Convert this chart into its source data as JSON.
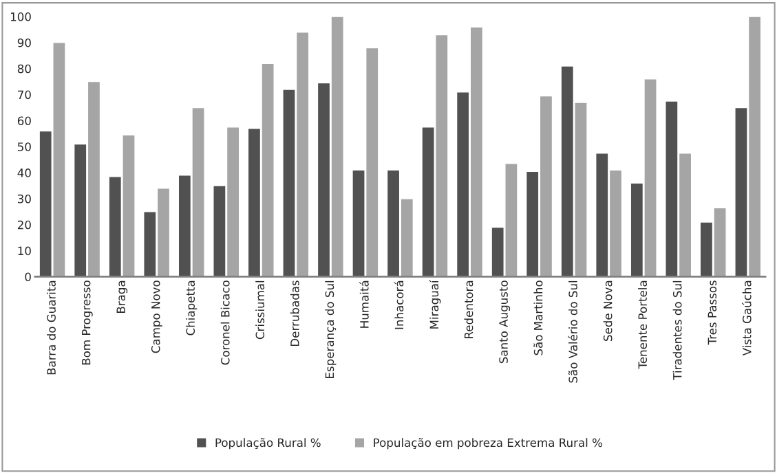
{
  "chart_data": {
    "type": "bar",
    "categories": [
      "Barra do Guarita",
      "Bom Progresso",
      "Braga",
      "Campo Novo",
      "Chiapetta",
      "Coronel Bicaco",
      "Crissiumal",
      "Derrubadas",
      "Esperança do Sul",
      "Humaitá",
      "Inhacorá",
      "Miraguaí",
      "Redentora",
      "Santo Augusto",
      "São Martinho",
      "São Valério do Sul",
      "Sede Nova",
      "Tenente Portela",
      "Tiradentes do Sul",
      "Tres Passos",
      "Vista Gaúcha"
    ],
    "series": [
      {
        "name": "População Rural %",
        "color": "#515151",
        "values": [
          56,
          51,
          38.5,
          25,
          39,
          35,
          57,
          72,
          74.5,
          41,
          41,
          57.5,
          71,
          19,
          40.5,
          81,
          47.5,
          36,
          67.5,
          21,
          65
        ]
      },
      {
        "name": "População em pobreza Extrema Rural %",
        "color": "#a5a5a5",
        "values": [
          90,
          75,
          54.5,
          34,
          65,
          57.5,
          82,
          94,
          100,
          88,
          30,
          93,
          96,
          43.5,
          69.5,
          67,
          41,
          76,
          47.5,
          26.5,
          100
        ]
      }
    ],
    "ylim": [
      0,
      100
    ],
    "yticks": [
      0,
      10,
      20,
      30,
      40,
      50,
      60,
      70,
      80,
      90,
      100
    ],
    "grid": false,
    "legend": "bottom"
  }
}
